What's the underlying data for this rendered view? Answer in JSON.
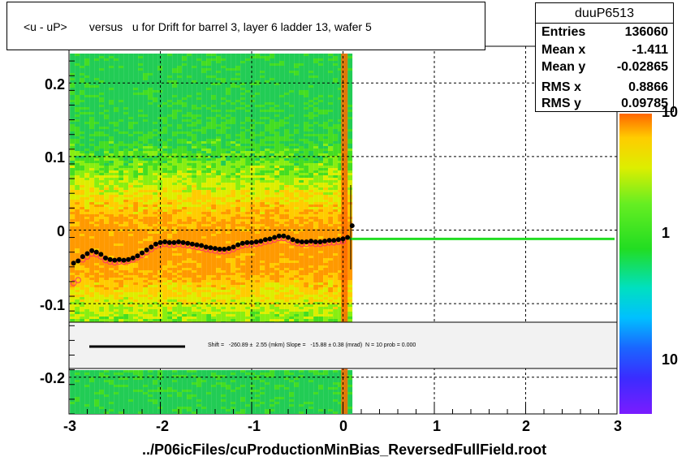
{
  "title": "<u - uP>       versus   u for Drift for barrel 3, layer 6 ladder 13, wafer 5",
  "stats": {
    "name": "duuP6513",
    "rows": [
      {
        "label": "Entries",
        "value": "136060"
      },
      {
        "label": "Mean x",
        "value": "-1.411"
      },
      {
        "label": "Mean y",
        "value": "-0.02865"
      },
      {
        "label": "RMS x",
        "value": "0.8866"
      },
      {
        "label": "RMS y",
        "value": "0.09785"
      }
    ]
  },
  "fit_text": "Shift =   -260.89 ±  2.55 (mkm) Slope =   -15.88 ± 0.38 (mrad)  N = 10 prob = 0.000",
  "file_label": "../P06icFiles/cuProductionMinBias_ReversedFullField.root",
  "axes": {
    "x_ticks": [
      "-3",
      "-2",
      "-1",
      "0",
      "1",
      "2",
      "3"
    ],
    "y_ticks": [
      "0.2",
      "0.1",
      "0",
      "-0.1",
      "-0.2"
    ],
    "z_ticks": [
      "10",
      "1",
      "10"
    ]
  },
  "colors": {
    "fit_line": "#22dd22",
    "profile_black": "#000000",
    "profile_open": "#ff3366"
  },
  "chart_data": {
    "type": "heatmap",
    "title": "<u - uP>       versus   u for Drift for barrel 3, layer 6 ladder 13, wafer 5",
    "xlabel": "",
    "ylabel": "",
    "xlim": [
      -3,
      3
    ],
    "ylim": [
      -0.25,
      0.25
    ],
    "grid": true,
    "fit_line_y": -0.012,
    "profile_black": {
      "x": [
        -2.95,
        -2.9,
        -2.85,
        -2.8,
        -2.75,
        -2.7,
        -2.65,
        -2.6,
        -2.55,
        -2.5,
        -2.45,
        -2.4,
        -2.35,
        -2.3,
        -2.25,
        -2.2,
        -2.15,
        -2.1,
        -2.05,
        -2.0,
        -1.95,
        -1.9,
        -1.85,
        -1.8,
        -1.75,
        -1.7,
        -1.65,
        -1.6,
        -1.55,
        -1.5,
        -1.45,
        -1.4,
        -1.35,
        -1.3,
        -1.25,
        -1.2,
        -1.15,
        -1.1,
        -1.05,
        -1.0,
        -0.95,
        -0.9,
        -0.85,
        -0.8,
        -0.75,
        -0.7,
        -0.65,
        -0.6,
        -0.55,
        -0.5,
        -0.45,
        -0.4,
        -0.35,
        -0.3,
        -0.25,
        -0.2,
        -0.15,
        -0.1,
        -0.05,
        0.0,
        0.05,
        0.1
      ],
      "y": [
        -0.045,
        -0.042,
        -0.036,
        -0.032,
        -0.028,
        -0.03,
        -0.033,
        -0.038,
        -0.04,
        -0.041,
        -0.04,
        -0.041,
        -0.04,
        -0.038,
        -0.035,
        -0.031,
        -0.027,
        -0.023,
        -0.019,
        -0.017,
        -0.016,
        -0.017,
        -0.017,
        -0.016,
        -0.017,
        -0.018,
        -0.019,
        -0.02,
        -0.021,
        -0.023,
        -0.024,
        -0.025,
        -0.026,
        -0.026,
        -0.025,
        -0.023,
        -0.02,
        -0.018,
        -0.017,
        -0.017,
        -0.016,
        -0.015,
        -0.013,
        -0.012,
        -0.01,
        -0.008,
        -0.008,
        -0.01,
        -0.013,
        -0.015,
        -0.016,
        -0.016,
        -0.015,
        -0.016,
        -0.016,
        -0.015,
        -0.014,
        -0.014,
        -0.013,
        -0.012,
        -0.01,
        0.006
      ]
    },
    "profile_open": {
      "x": [
        -2.95,
        -2.9,
        -2.85,
        -2.8,
        -2.75,
        -2.7,
        -2.65,
        -2.6,
        -2.55,
        -2.5,
        -2.45,
        -2.4,
        -2.35,
        -2.3,
        -2.25,
        -2.2,
        -2.15,
        -2.1,
        -2.05,
        -2.0,
        -1.95,
        -1.9,
        -1.85,
        -1.8,
        -1.75,
        -1.7,
        -1.65,
        -1.6,
        -1.55,
        -1.5,
        -1.45,
        -1.4,
        -1.35,
        -1.3,
        -1.25,
        -1.2,
        -1.15,
        -1.1,
        -1.05,
        -1.0,
        -0.95,
        -0.9,
        -0.85,
        -0.8,
        -0.75,
        -0.7,
        -0.65,
        -0.6,
        -0.55,
        -0.5,
        -0.45,
        -0.4,
        -0.35,
        -0.3,
        -0.25,
        -0.2,
        -0.15,
        -0.1,
        -0.05,
        0.0
      ],
      "y": [
        -0.072,
        -0.068,
        -0.04,
        -0.036,
        -0.032,
        -0.033,
        -0.036,
        -0.041,
        -0.043,
        -0.044,
        -0.043,
        -0.043,
        -0.042,
        -0.04,
        -0.037,
        -0.034,
        -0.03,
        -0.026,
        -0.022,
        -0.02,
        -0.019,
        -0.02,
        -0.02,
        -0.019,
        -0.02,
        -0.021,
        -0.022,
        -0.023,
        -0.024,
        -0.026,
        -0.027,
        -0.028,
        -0.029,
        -0.029,
        -0.028,
        -0.026,
        -0.023,
        -0.021,
        -0.02,
        -0.02,
        -0.019,
        -0.018,
        -0.016,
        -0.015,
        -0.013,
        -0.011,
        -0.011,
        -0.013,
        -0.016,
        -0.018,
        -0.019,
        -0.019,
        -0.018,
        -0.019,
        -0.019,
        -0.018,
        -0.017,
        -0.017,
        -0.016,
        -0.015
      ]
    }
  }
}
